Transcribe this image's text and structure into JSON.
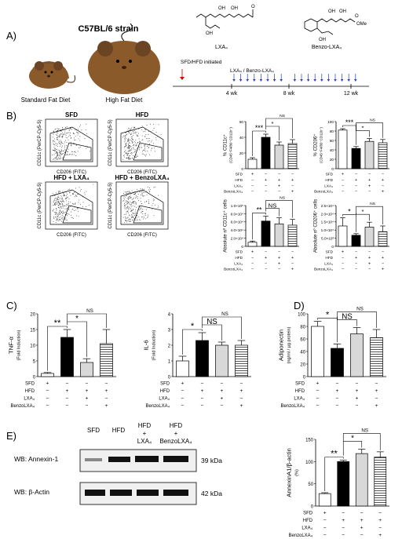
{
  "panels": {
    "A": {
      "letter": "A)",
      "strain": "C57BL/6 strain",
      "diet_standard": "Standard Fat Diet",
      "diet_high": "High Fat Diet",
      "initiated": "SFD/HFD initiated",
      "treatment": "LXA₄ / Benzo-LXA₄",
      "weeks": [
        "4 wk",
        "8 wk",
        "12 wk"
      ],
      "compound_1": "LXA₄",
      "compound_2": "Benzo-LXA₄",
      "oh": "OH",
      "o": "O",
      "ome": "OMe"
    },
    "B": {
      "letter": "B)",
      "flow_titles": [
        "SFD",
        "HFD",
        "HFD + LXA₄",
        "HFD + BenzoLXA₄"
      ],
      "flow_ylabel": "CD11c (PerCP-Cy5-5)",
      "flow_xlabel": "CD206 (FITC)"
    },
    "C": {
      "letter": "C)"
    },
    "D": {
      "letter": "D)"
    },
    "E": {
      "letter": "E)",
      "lanes": [
        "SFD",
        "HFD",
        "HFD",
        "HFD"
      ],
      "lane_plus": "+",
      "lane_treat": [
        "LXA₄",
        "BenzoLXA₄"
      ],
      "wb_rows": [
        {
          "label": "WB: Annexin-1",
          "kda": "39 kDa"
        },
        {
          "label": "WB: β-Actin",
          "kda": "42 kDa"
        }
      ]
    }
  },
  "treatment_labels": [
    "SFD",
    "HFD",
    "LXA₄",
    "BenzoLXA₄"
  ],
  "chart_data": [
    {
      "id": "B1",
      "type": "bar",
      "ylabel": "% CD11c⁺",
      "ylabel2": "(CD45⁺F4/80⁺CD11b⁺)",
      "categories": [
        "SFD",
        "HFD",
        "HFD+LXA₄",
        "HFD+BenzoLXA₄"
      ],
      "values": [
        12,
        40,
        30,
        32
      ],
      "errors": [
        2,
        4,
        4,
        5
      ],
      "ylim": [
        0,
        60
      ],
      "yticks": [
        "0",
        "20",
        "40",
        "60"
      ],
      "sig": [
        "***",
        "*",
        "NS"
      ]
    },
    {
      "id": "B2",
      "type": "bar",
      "ylabel": "% CD206⁺",
      "ylabel2": "(CD45⁺F4/80⁺CD11b⁺)",
      "categories": [
        "SFD",
        "HFD",
        "HFD+LXA₄",
        "HFD+BenzoLXA₄"
      ],
      "values": [
        82,
        43,
        58,
        55
      ],
      "errors": [
        3,
        4,
        6,
        7
      ],
      "ylim": [
        0,
        100
      ],
      "yticks": [
        "0",
        "20",
        "40",
        "60",
        "80",
        "100"
      ],
      "sig": [
        "***",
        "*",
        "NS"
      ]
    },
    {
      "id": "B3",
      "type": "bar",
      "ylabel": "Absolute nº CD11c⁺ cells",
      "ylabel2": "",
      "categories": [
        "SFD",
        "HFD",
        "HFD+LXA₄",
        "HFD+BenzoLXA₄"
      ],
      "values": [
        1.0,
        6.2,
        5.5,
        5.2
      ],
      "errors": [
        0.3,
        1.2,
        1.5,
        1.4
      ],
      "ylim": [
        0,
        10
      ],
      "yticks": [
        "0",
        "2.0×10⁴",
        "4.0×10⁴",
        "6.0×10⁴",
        "8.0×10⁴",
        "1.0×10⁵"
      ],
      "sig": [
        "**",
        "NS",
        "NS"
      ]
    },
    {
      "id": "B4",
      "type": "bar",
      "ylabel": "Absolute nº CD206⁺ cells",
      "ylabel2": "",
      "categories": [
        "SFD",
        "HFD",
        "HFD+LXA₄",
        "HFD+BenzoLXA₄"
      ],
      "values": [
        1.25,
        0.68,
        1.18,
        0.9
      ],
      "errors": [
        0.5,
        0.1,
        0.3,
        0.35
      ],
      "ylim": [
        0,
        2.5
      ],
      "yticks": [
        "0",
        "5.0×10³",
        "1.0×10⁴",
        "1.5×10⁴",
        "2.0×10⁴",
        "2.5×10⁴"
      ],
      "sig": [
        "*",
        "*",
        "NS"
      ]
    },
    {
      "id": "C1",
      "type": "bar",
      "ylabel": "TNF-α",
      "ylabel2": "(Fold Induction)",
      "categories": [
        "SFD",
        "HFD",
        "HFD+LXA₄",
        "HFD+BenzoLXA₄"
      ],
      "values": [
        1,
        12.5,
        4.5,
        10.5
      ],
      "errors": [
        0.3,
        2.5,
        1.2,
        4.5
      ],
      "ylim": [
        0,
        20
      ],
      "yticks": [
        "0",
        "5",
        "10",
        "15",
        "20"
      ],
      "sig": [
        "**",
        "*",
        "NS"
      ]
    },
    {
      "id": "C2",
      "type": "bar",
      "ylabel": "IL-6",
      "ylabel2": "(Fold Induction)",
      "categories": [
        "SFD",
        "HFD",
        "HFD+LXA₄",
        "HFD+BenzoLXA₄"
      ],
      "values": [
        1.0,
        2.3,
        2.0,
        2.0
      ],
      "errors": [
        0.3,
        0.5,
        0.2,
        0.3
      ],
      "ylim": [
        0,
        4
      ],
      "yticks": [
        "0",
        "1",
        "2",
        "3",
        "4"
      ],
      "sig": [
        "*",
        "NS",
        "NS"
      ]
    },
    {
      "id": "D",
      "type": "bar",
      "ylabel": "Adiponectin",
      "ylabel2": "(ng/ml / µg protein)",
      "categories": [
        "SFD",
        "HFD",
        "HFD+LXA₄",
        "HFD+BenzoLXA₄"
      ],
      "values": [
        80,
        45,
        68,
        62
      ],
      "errors": [
        8,
        7,
        10,
        13
      ],
      "ylim": [
        0,
        100
      ],
      "yticks": [
        "0",
        "20",
        "40",
        "60",
        "80",
        "100"
      ],
      "sig": [
        "*",
        "NS",
        "NS"
      ]
    },
    {
      "id": "E",
      "type": "bar",
      "ylabel": "AnnexinA1/β-actin",
      "ylabel2": "(%)",
      "categories": [
        "SFD",
        "HFD",
        "HFD+LXA₄",
        "HFD+BenzoLXA₄"
      ],
      "values": [
        28,
        100,
        118,
        110
      ],
      "errors": [
        2,
        3,
        10,
        12
      ],
      "ylim": [
        0,
        150
      ],
      "yticks": [
        "0",
        "50",
        "100",
        "150"
      ],
      "sig": [
        "**",
        "*",
        "NS"
      ]
    }
  ]
}
